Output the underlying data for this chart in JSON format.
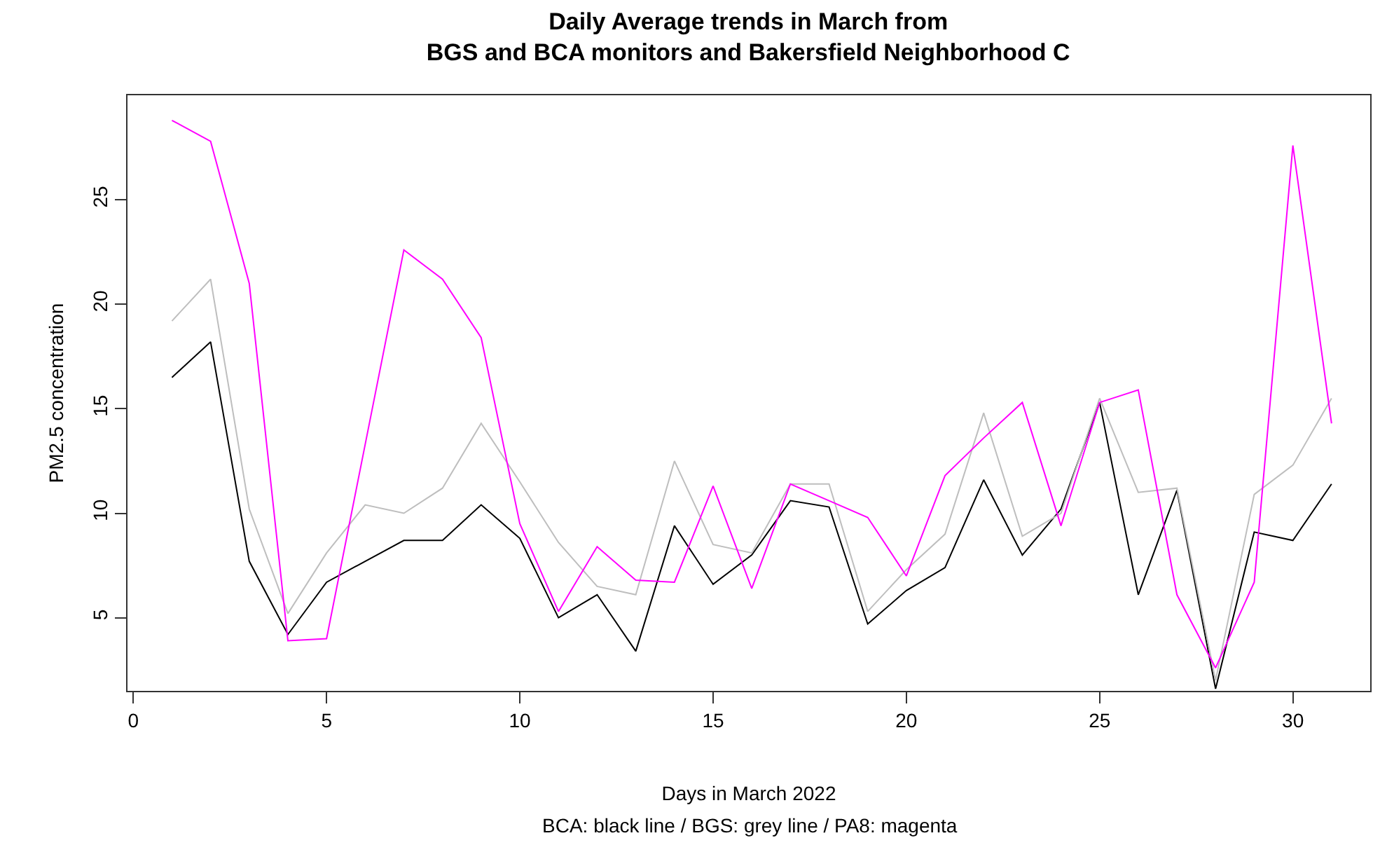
{
  "chart_data": {
    "type": "line",
    "title": "Daily Average trends in March from\nBGS and BCA monitors and Bakersfield Neighborhood C",
    "xlabel": "Days in March 2022",
    "ylabel": "PM2.5 concentration",
    "annotations": [
      "BCA: black line / BGS: grey line / PA8: magenta"
    ],
    "x": [
      1,
      2,
      3,
      4,
      5,
      6,
      7,
      8,
      9,
      10,
      11,
      12,
      13,
      14,
      15,
      16,
      17,
      18,
      19,
      20,
      21,
      22,
      23,
      24,
      25,
      26,
      27,
      28,
      29,
      30,
      31
    ],
    "series": [
      {
        "color": "#000000",
        "values": [
          16.5,
          18.2,
          7.7,
          4.2,
          6.7,
          7.7,
          8.7,
          8.7,
          10.4,
          8.8,
          5.0,
          6.1,
          3.4,
          9.4,
          6.6,
          8.0,
          10.6,
          10.3,
          4.7,
          6.3,
          7.4,
          11.6,
          8.0,
          10.2,
          15.3,
          6.1,
          11.1,
          1.6,
          9.1,
          8.7,
          11.4
        ]
      },
      {
        "color": "#bebebe",
        "values": [
          19.2,
          21.2,
          10.2,
          5.2,
          8.1,
          10.4,
          10.0,
          11.2,
          14.3,
          11.5,
          8.6,
          6.5,
          6.1,
          12.5,
          8.5,
          8.1,
          11.4,
          11.4,
          5.3,
          7.3,
          9.0,
          14.8,
          8.9,
          10.0,
          15.5,
          11.0,
          11.2,
          2.0,
          10.9,
          12.3,
          15.5
        ]
      },
      {
        "color": "#ff00ff",
        "values": [
          28.8,
          27.8,
          21.0,
          3.9,
          4.0,
          13.3,
          22.6,
          21.2,
          18.4,
          9.5,
          5.3,
          8.4,
          6.8,
          6.7,
          11.3,
          6.4,
          11.4,
          10.6,
          9.8,
          7.0,
          11.8,
          13.6,
          15.3,
          9.4,
          15.3,
          15.9,
          6.1,
          2.6,
          6.7,
          27.6,
          14.3
        ]
      }
    ],
    "xlim": [
      -0.15,
      32.0
    ],
    "ylim": [
      1.5,
      30.0
    ],
    "xticks": [
      0,
      5,
      10,
      15,
      20,
      25,
      30
    ],
    "yticks": [
      5,
      10,
      15,
      20,
      25
    ],
    "grid": false,
    "marker": "none",
    "line_style": "solid"
  }
}
